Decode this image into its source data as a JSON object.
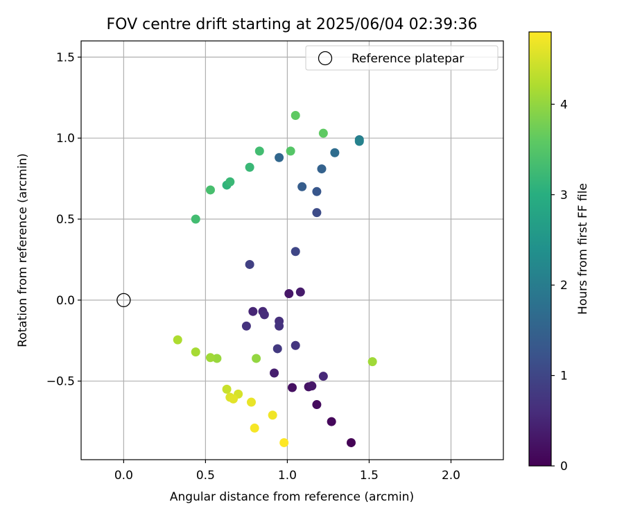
{
  "chart_data": {
    "type": "scatter",
    "title": "FOV centre drift starting at 2025/06/04 02:39:36",
    "xlabel": "Angular distance from reference (arcmin)",
    "ylabel": "Rotation from reference (arcmin)",
    "colorbar_label": "Hours from first FF file",
    "xlim": [
      -0.26,
      2.32
    ],
    "ylim": [
      -0.985,
      1.6
    ],
    "clim": [
      0,
      4.8
    ],
    "colormap": "viridis",
    "x_ticks": [
      0.0,
      0.5,
      1.0,
      1.5,
      2.0
    ],
    "x_tick_labels": [
      "0.0",
      "0.5",
      "1.0",
      "1.5",
      "2.0"
    ],
    "y_ticks": [
      -0.5,
      0.0,
      0.5,
      1.0,
      1.5
    ],
    "y_tick_labels": [
      "−0.5",
      "0.0",
      "0.5",
      "1.0",
      "1.5"
    ],
    "c_ticks": [
      0,
      1,
      2,
      3,
      4
    ],
    "c_tick_labels": [
      "0",
      "1",
      "2",
      "3",
      "4"
    ],
    "grid": true,
    "legend": {
      "label": "Reference platepar",
      "loc": "upper right"
    },
    "reference": {
      "x": 0.0,
      "y": 0.0
    },
    "points": [
      {
        "x": 1.39,
        "y": -0.88,
        "t": 0.02
      },
      {
        "x": 1.27,
        "y": -0.75,
        "t": 0.1
      },
      {
        "x": 1.18,
        "y": -0.645,
        "t": 0.15
      },
      {
        "x": 1.03,
        "y": -0.54,
        "t": 0.2
      },
      {
        "x": 1.13,
        "y": -0.535,
        "t": 0.25
      },
      {
        "x": 1.15,
        "y": -0.53,
        "t": 0.3
      },
      {
        "x": 1.01,
        "y": 0.04,
        "t": 0.3
      },
      {
        "x": 1.08,
        "y": 0.05,
        "t": 0.35
      },
      {
        "x": 0.92,
        "y": -0.45,
        "t": 0.4
      },
      {
        "x": 1.22,
        "y": -0.47,
        "t": 0.55
      },
      {
        "x": 0.79,
        "y": -0.07,
        "t": 0.5
      },
      {
        "x": 0.85,
        "y": -0.07,
        "t": 0.55
      },
      {
        "x": 0.86,
        "y": -0.09,
        "t": 0.6
      },
      {
        "x": 0.95,
        "y": -0.13,
        "t": 0.65
      },
      {
        "x": 0.95,
        "y": -0.16,
        "t": 0.7
      },
      {
        "x": 0.75,
        "y": -0.16,
        "t": 0.7
      },
      {
        "x": 1.05,
        "y": -0.28,
        "t": 0.75
      },
      {
        "x": 0.94,
        "y": -0.3,
        "t": 0.8
      },
      {
        "x": 0.77,
        "y": 0.22,
        "t": 0.9
      },
      {
        "x": 1.05,
        "y": 0.3,
        "t": 1.0
      },
      {
        "x": 1.18,
        "y": 0.54,
        "t": 1.1
      },
      {
        "x": 1.18,
        "y": 0.67,
        "t": 1.3
      },
      {
        "x": 1.09,
        "y": 0.7,
        "t": 1.4
      },
      {
        "x": 1.21,
        "y": 0.81,
        "t": 1.5
      },
      {
        "x": 0.95,
        "y": 0.88,
        "t": 1.6
      },
      {
        "x": 1.29,
        "y": 0.91,
        "t": 1.7
      },
      {
        "x": 1.44,
        "y": 0.99,
        "t": 2.0
      },
      {
        "x": 1.44,
        "y": 0.98,
        "t": 2.1
      },
      {
        "x": 0.44,
        "y": 0.5,
        "t": 3.3
      },
      {
        "x": 0.63,
        "y": 0.71,
        "t": 3.1
      },
      {
        "x": 0.65,
        "y": 0.73,
        "t": 3.2
      },
      {
        "x": 0.53,
        "y": 0.68,
        "t": 3.35
      },
      {
        "x": 0.77,
        "y": 0.82,
        "t": 3.2
      },
      {
        "x": 0.83,
        "y": 0.92,
        "t": 3.3
      },
      {
        "x": 1.02,
        "y": 0.92,
        "t": 3.5
      },
      {
        "x": 1.05,
        "y": 1.14,
        "t": 3.6
      },
      {
        "x": 1.22,
        "y": 1.03,
        "t": 3.6
      },
      {
        "x": 1.52,
        "y": -0.38,
        "t": 4.1
      },
      {
        "x": 0.81,
        "y": -0.36,
        "t": 4.0
      },
      {
        "x": 0.57,
        "y": -0.36,
        "t": 4.05
      },
      {
        "x": 0.53,
        "y": -0.355,
        "t": 4.1
      },
      {
        "x": 0.44,
        "y": -0.32,
        "t": 4.15
      },
      {
        "x": 0.33,
        "y": -0.245,
        "t": 4.2
      },
      {
        "x": 0.63,
        "y": -0.55,
        "t": 4.4
      },
      {
        "x": 0.7,
        "y": -0.58,
        "t": 4.5
      },
      {
        "x": 0.65,
        "y": -0.6,
        "t": 4.55
      },
      {
        "x": 0.67,
        "y": -0.61,
        "t": 4.6
      },
      {
        "x": 0.78,
        "y": -0.63,
        "t": 4.65
      },
      {
        "x": 0.91,
        "y": -0.71,
        "t": 4.7
      },
      {
        "x": 0.8,
        "y": -0.79,
        "t": 4.75
      },
      {
        "x": 0.98,
        "y": -0.88,
        "t": 4.8
      }
    ]
  }
}
